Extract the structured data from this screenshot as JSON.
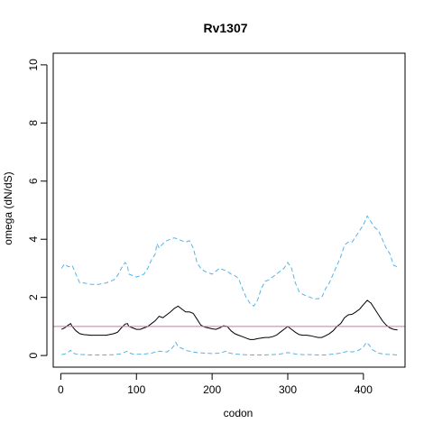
{
  "chart_data": {
    "type": "line",
    "title": "Rv1307",
    "xlabel": "codon",
    "ylabel": "omega (dN/dS)",
    "xlim": [
      -10,
      455
    ],
    "ylim": [
      -0.4,
      10.4
    ],
    "x_ticks": [
      0,
      100,
      200,
      300,
      400
    ],
    "x_tick_labels": [
      "0",
      "100",
      "200",
      "300",
      "400"
    ],
    "y_ticks": [
      0,
      2,
      4,
      6,
      8,
      10
    ],
    "y_tick_labels": [
      "0",
      "2",
      "4",
      "6",
      "8",
      "10"
    ],
    "grid": false,
    "reference_line": {
      "y": 1.0,
      "color": "#cc79a7"
    },
    "series": [
      {
        "role": "upper",
        "color": "#56b4e9",
        "dash": "dashed",
        "x": [
          1,
          5,
          10,
          15,
          20,
          25,
          30,
          40,
          50,
          60,
          70,
          75,
          80,
          85,
          88,
          90,
          95,
          100,
          105,
          110,
          115,
          120,
          125,
          127,
          130,
          135,
          140,
          145,
          150,
          155,
          160,
          165,
          170,
          175,
          180,
          185,
          190,
          195,
          200,
          205,
          210,
          215,
          220,
          225,
          230,
          235,
          240,
          245,
          250,
          255,
          260,
          265,
          270,
          275,
          280,
          285,
          290,
          295,
          300,
          305,
          310,
          315,
          320,
          325,
          330,
          335,
          340,
          345,
          350,
          355,
          360,
          365,
          370,
          375,
          380,
          385,
          390,
          395,
          400,
          405,
          410,
          415,
          420,
          425,
          430,
          435,
          440,
          445
        ],
        "y": [
          3.0,
          3.15,
          3.05,
          3.1,
          2.8,
          2.5,
          2.5,
          2.45,
          2.45,
          2.5,
          2.6,
          2.75,
          3.0,
          3.2,
          3.1,
          2.8,
          2.75,
          2.7,
          2.75,
          2.8,
          3.0,
          3.3,
          3.5,
          3.85,
          3.7,
          3.85,
          3.95,
          4.0,
          4.05,
          4.0,
          3.95,
          3.9,
          3.95,
          3.7,
          3.2,
          3.0,
          2.9,
          2.85,
          2.8,
          2.9,
          3.0,
          2.95,
          2.9,
          2.8,
          2.75,
          2.65,
          2.3,
          2.0,
          1.8,
          1.7,
          1.9,
          2.3,
          2.55,
          2.6,
          2.7,
          2.8,
          2.9,
          3.0,
          3.2,
          3.0,
          2.5,
          2.2,
          2.1,
          2.05,
          2.0,
          1.95,
          1.95,
          2.0,
          2.3,
          2.5,
          2.8,
          3.1,
          3.4,
          3.8,
          3.9,
          3.9,
          4.1,
          4.3,
          4.5,
          4.8,
          4.6,
          4.4,
          4.3,
          4.0,
          3.7,
          3.5,
          3.1,
          3.05
        ]
      },
      {
        "role": "estimate",
        "color": "#000000",
        "dash": "solid",
        "x": [
          1,
          5,
          10,
          13,
          15,
          20,
          25,
          30,
          40,
          50,
          60,
          70,
          75,
          80,
          85,
          88,
          90,
          95,
          100,
          105,
          110,
          115,
          120,
          125,
          130,
          135,
          140,
          145,
          150,
          155,
          160,
          165,
          170,
          175,
          180,
          185,
          190,
          195,
          200,
          205,
          210,
          215,
          220,
          225,
          230,
          235,
          240,
          245,
          250,
          255,
          260,
          265,
          270,
          275,
          280,
          285,
          290,
          295,
          300,
          305,
          310,
          315,
          320,
          325,
          330,
          335,
          340,
          345,
          350,
          355,
          360,
          365,
          370,
          375,
          380,
          385,
          390,
          395,
          400,
          405,
          410,
          415,
          420,
          425,
          430,
          435,
          440,
          445
        ],
        "y": [
          0.9,
          0.95,
          1.05,
          1.1,
          1.0,
          0.85,
          0.75,
          0.72,
          0.7,
          0.7,
          0.7,
          0.75,
          0.8,
          0.95,
          1.08,
          1.1,
          1.0,
          0.95,
          0.9,
          0.9,
          0.95,
          1.0,
          1.1,
          1.2,
          1.35,
          1.3,
          1.4,
          1.5,
          1.62,
          1.7,
          1.6,
          1.5,
          1.5,
          1.45,
          1.25,
          1.05,
          0.98,
          0.95,
          0.92,
          0.9,
          0.95,
          1.02,
          1.0,
          0.85,
          0.75,
          0.7,
          0.65,
          0.6,
          0.55,
          0.55,
          0.58,
          0.6,
          0.62,
          0.62,
          0.65,
          0.7,
          0.8,
          0.9,
          1.0,
          0.9,
          0.8,
          0.72,
          0.7,
          0.7,
          0.68,
          0.65,
          0.62,
          0.62,
          0.68,
          0.75,
          0.85,
          1.0,
          1.1,
          1.3,
          1.4,
          1.42,
          1.5,
          1.6,
          1.75,
          1.9,
          1.8,
          1.6,
          1.4,
          1.2,
          1.05,
          0.95,
          0.9,
          0.88
        ]
      },
      {
        "role": "lower",
        "color": "#56b4e9",
        "dash": "dashed",
        "x": [
          1,
          5,
          10,
          13,
          15,
          20,
          30,
          40,
          50,
          60,
          70,
          80,
          85,
          88,
          90,
          95,
          100,
          110,
          120,
          125,
          130,
          140,
          145,
          150,
          152,
          155,
          160,
          165,
          170,
          180,
          190,
          200,
          210,
          215,
          218,
          220,
          230,
          240,
          250,
          260,
          270,
          280,
          290,
          295,
          300,
          305,
          310,
          320,
          330,
          340,
          350,
          360,
          370,
          375,
          380,
          385,
          390,
          395,
          400,
          404,
          408,
          412,
          420,
          430,
          440,
          445
        ],
        "y": [
          0.03,
          0.05,
          0.12,
          0.18,
          0.1,
          0.05,
          0.03,
          0.02,
          0.02,
          0.02,
          0.03,
          0.06,
          0.12,
          0.15,
          0.1,
          0.05,
          0.04,
          0.05,
          0.08,
          0.12,
          0.15,
          0.12,
          0.2,
          0.35,
          0.45,
          0.3,
          0.25,
          0.18,
          0.15,
          0.1,
          0.08,
          0.07,
          0.08,
          0.12,
          0.15,
          0.1,
          0.05,
          0.03,
          0.02,
          0.02,
          0.02,
          0.03,
          0.05,
          0.08,
          0.1,
          0.08,
          0.05,
          0.03,
          0.03,
          0.02,
          0.02,
          0.05,
          0.08,
          0.12,
          0.15,
          0.12,
          0.15,
          0.2,
          0.3,
          0.45,
          0.35,
          0.2,
          0.08,
          0.04,
          0.03,
          0.02
        ]
      }
    ]
  }
}
